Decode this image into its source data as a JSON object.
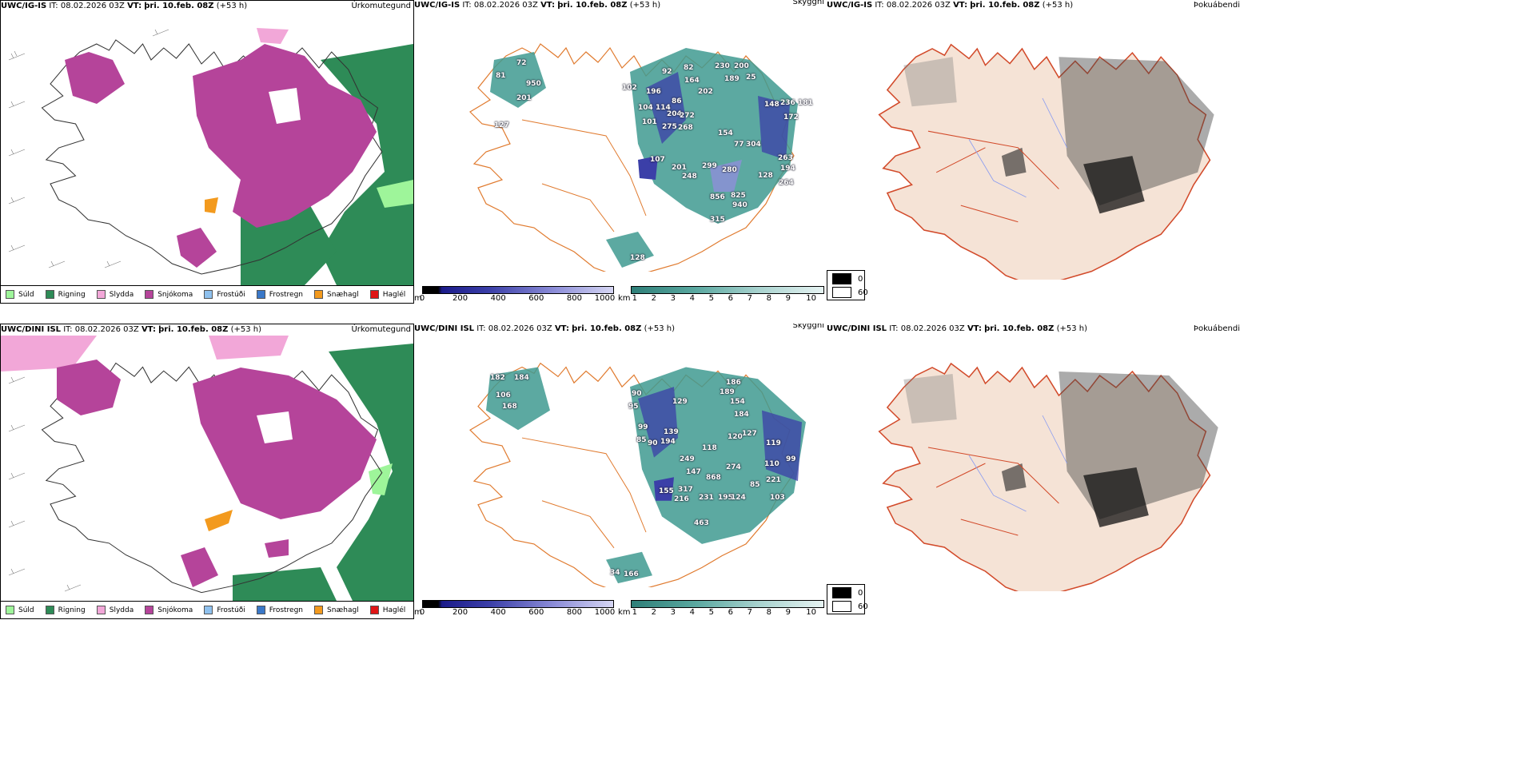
{
  "rows": [
    {
      "model": "UWC/IG-IS",
      "it_label": "IT:",
      "it_value": "08.02.2026 03Z",
      "vt_label": "VT:",
      "vt_value": "þri. 10.feb. 08Z",
      "lead": "(+53 h)",
      "precip_title": "Úrkomutegund",
      "cloud_title": "Skyggni",
      "fog_title": "Þokuábendi",
      "labels": [
        "81",
        "72",
        "950",
        "201",
        "127",
        "102",
        "196",
        "104",
        "114",
        "86",
        "101",
        "204",
        "272",
        "275",
        "268",
        "154",
        "77",
        "304",
        "107",
        "201",
        "248",
        "299",
        "280",
        "128",
        "856",
        "825",
        "940",
        "315",
        "128",
        "236",
        "181",
        "148",
        "172",
        "263",
        "194",
        "264",
        "230",
        "200",
        "189",
        "25",
        "202",
        "82",
        "92",
        "164"
      ]
    },
    {
      "model": "UWC/DINI ISL",
      "it_label": "IT:",
      "it_value": "08.02.2026 03Z",
      "vt_label": "VT:",
      "vt_value": "þri. 10.feb. 08Z",
      "lead": "(+53 h)",
      "precip_title": "Úrkomutegund",
      "cloud_title": "Skyggni",
      "fog_title": "Þokuábendi",
      "labels": [
        "182",
        "184",
        "106",
        "168",
        "90",
        "95",
        "99",
        "85",
        "90",
        "194",
        "139",
        "129",
        "249",
        "147",
        "118",
        "155",
        "317",
        "216",
        "231",
        "195",
        "124",
        "868",
        "274",
        "463",
        "120",
        "127",
        "119",
        "110",
        "99",
        "85",
        "221",
        "103",
        "34",
        "166",
        "186",
        "189",
        "154",
        "184"
      ]
    }
  ],
  "precip_legend": [
    {
      "label": "Súld",
      "color": "#9ef59a"
    },
    {
      "label": "Rigning",
      "color": "#2e8b57"
    },
    {
      "label": "Slydda",
      "color": "#f2a7d8"
    },
    {
      "label": "Snjókoma",
      "color": "#b5449a"
    },
    {
      "label": "Frostúði",
      "color": "#8fc1ee"
    },
    {
      "label": "Frostregn",
      "color": "#3a78c8"
    },
    {
      "label": "Snæhagl",
      "color": "#f39a1e"
    },
    {
      "label": "Haglél",
      "color": "#e01616"
    }
  ],
  "height_bar": {
    "unit": "m",
    "ticks": [
      "0",
      "200",
      "400",
      "600",
      "800",
      "1000"
    ]
  },
  "dist_bar": {
    "unit": "km",
    "ticks": [
      "1",
      "2",
      "3",
      "4",
      "5",
      "6",
      "7",
      "8",
      "9",
      "10"
    ]
  },
  "fog_legend": {
    "values": [
      "0",
      "60"
    ]
  },
  "colors": {
    "snow": "#b5449a",
    "rain": "#2e8b57",
    "drizzle": "#9ef59a",
    "sleet": "#f2a7d8",
    "teal": "#3f9a91",
    "blue": "#3b3fa8",
    "land": "#f5e3d6",
    "roads": "#e07a2e"
  }
}
